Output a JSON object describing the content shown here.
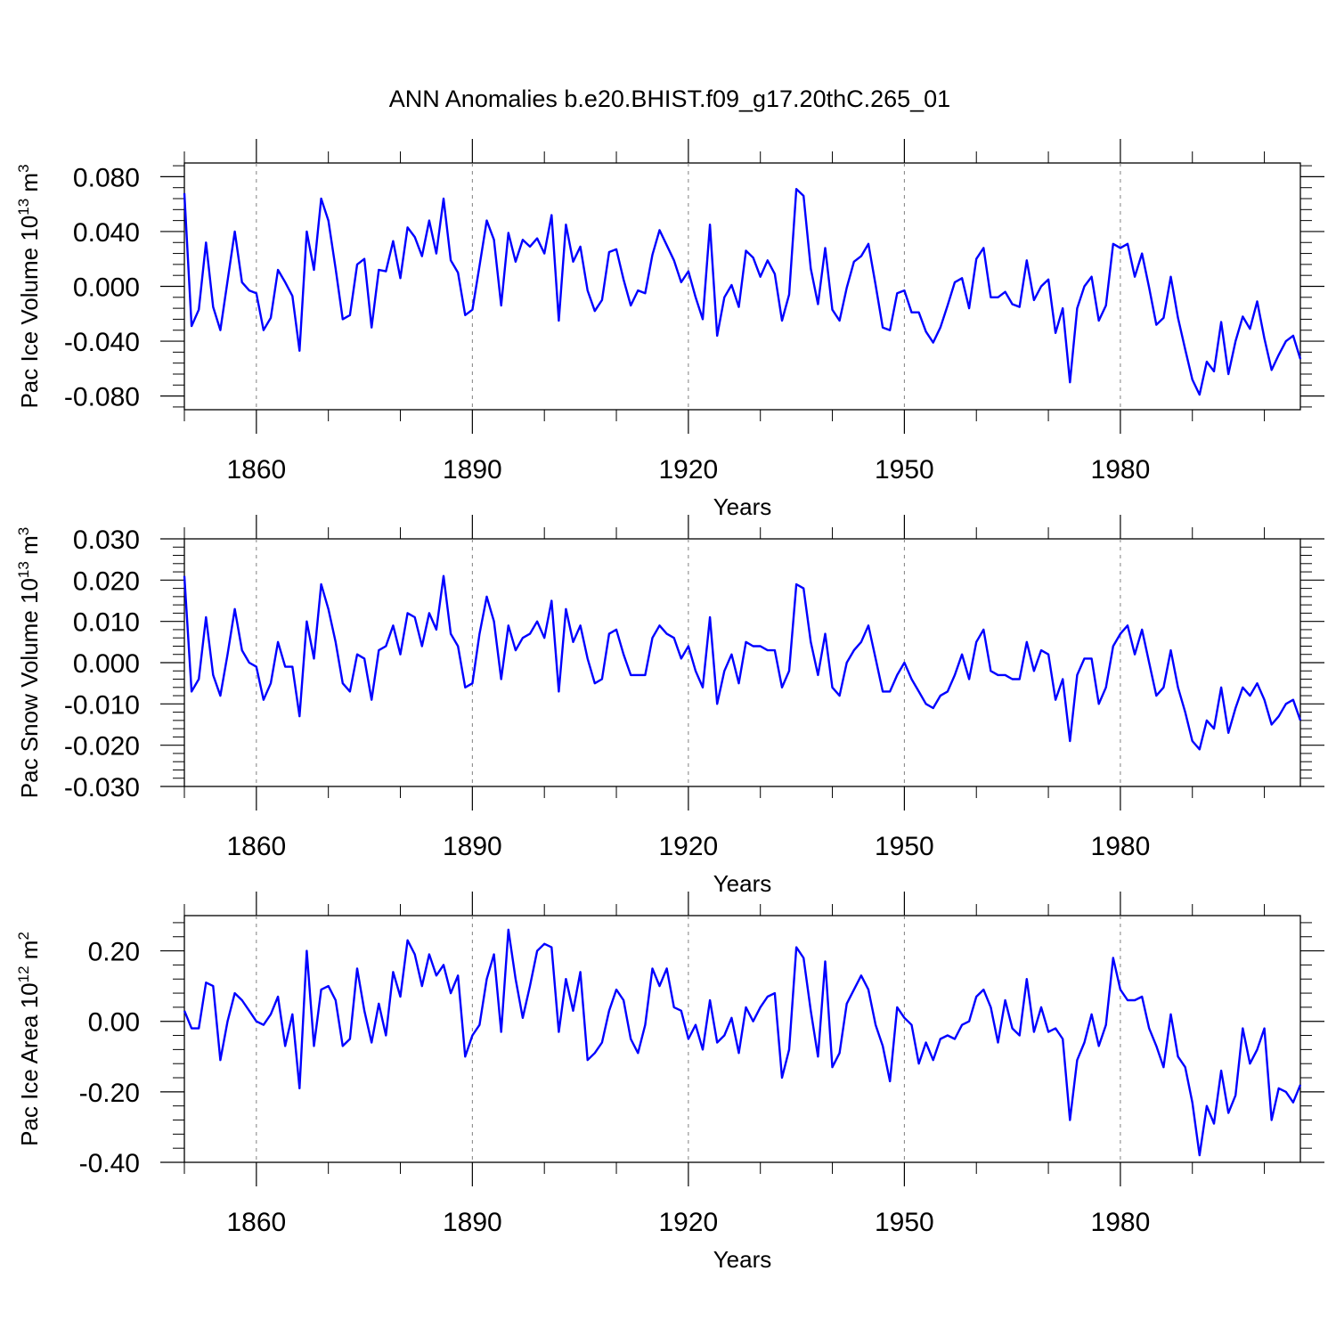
{
  "title": "ANN Anomalies b.e20.BHIST.f09_g17.20thC.265_01",
  "line_color": "#0000ff",
  "chart_data": [
    {
      "type": "line",
      "ylabel_main": "Pac Ice Volume 10",
      "ylabel_exp": "13",
      "ylabel_unit": " m",
      "ylabel_unit_exp": "3",
      "xlabel": "Years",
      "xlim": [
        1850,
        2005
      ],
      "ylim": [
        -0.09,
        0.09
      ],
      "yticks": [
        -0.08,
        -0.04,
        0.0,
        0.04,
        0.08
      ],
      "ytick_labels": [
        "-0.080",
        "-0.040",
        "0.000",
        "0.040",
        "0.080"
      ],
      "xticks": [
        1860,
        1890,
        1920,
        1950,
        1980
      ],
      "xtick_labels": [
        "1860",
        "1890",
        "1920",
        "1950",
        "1980"
      ],
      "x_start": 1850,
      "values": [
        0.068,
        -0.029,
        -0.017,
        0.032,
        -0.015,
        -0.032,
        0.004,
        0.04,
        0.003,
        -0.003,
        -0.005,
        -0.032,
        -0.023,
        0.012,
        0.003,
        -0.007,
        -0.047,
        0.04,
        0.012,
        0.064,
        0.048,
        0.013,
        -0.024,
        -0.021,
        0.016,
        0.02,
        -0.03,
        0.012,
        0.011,
        0.033,
        0.006,
        0.043,
        0.036,
        0.022,
        0.048,
        0.024,
        0.064,
        0.019,
        0.01,
        -0.021,
        -0.017,
        0.015,
        0.048,
        0.034,
        -0.014,
        0.039,
        0.018,
        0.034,
        0.029,
        0.035,
        0.024,
        0.052,
        -0.025,
        0.045,
        0.018,
        0.029,
        -0.003,
        -0.018,
        -0.01,
        0.025,
        0.027,
        0.005,
        -0.014,
        -0.003,
        -0.005,
        0.023,
        0.041,
        0.03,
        0.019,
        0.003,
        0.011,
        -0.008,
        -0.024,
        0.045,
        -0.036,
        -0.008,
        0.001,
        -0.015,
        0.026,
        0.021,
        0.007,
        0.019,
        0.009,
        -0.025,
        -0.006,
        0.071,
        0.066,
        0.013,
        -0.013,
        0.028,
        -0.017,
        -0.025,
        -0.001,
        0.018,
        0.022,
        0.031,
        0.001,
        -0.03,
        -0.032,
        -0.005,
        -0.003,
        -0.019,
        -0.019,
        -0.033,
        -0.041,
        -0.03,
        -0.014,
        0.003,
        0.006,
        -0.016,
        0.02,
        0.028,
        -0.008,
        -0.008,
        -0.004,
        -0.013,
        -0.015,
        0.019,
        -0.01,
        0.0,
        0.005,
        -0.034,
        -0.016,
        -0.07,
        -0.016,
        0.0,
        0.007,
        -0.025,
        -0.014,
        0.031,
        0.028,
        0.031,
        0.007,
        0.024,
        -0.001,
        -0.028,
        -0.023,
        0.007,
        -0.023,
        -0.046,
        -0.068,
        -0.079,
        -0.055,
        -0.062,
        -0.026,
        -0.064,
        -0.04,
        -0.022,
        -0.031,
        -0.011,
        -0.038,
        -0.061,
        -0.05,
        -0.04,
        -0.036,
        -0.053
      ]
    },
    {
      "type": "line",
      "ylabel_main": "Pac Snow Volume 10",
      "ylabel_exp": "13",
      "ylabel_unit": " m",
      "ylabel_unit_exp": "3",
      "xlabel": "Years",
      "xlim": [
        1850,
        2005
      ],
      "ylim": [
        -0.03,
        0.03
      ],
      "yticks": [
        -0.03,
        -0.02,
        -0.01,
        0.0,
        0.01,
        0.02,
        0.03
      ],
      "ytick_labels": [
        "-0.030",
        "-0.020",
        "-0.010",
        "0.000",
        "0.010",
        "0.020",
        "0.030"
      ],
      "xticks": [
        1860,
        1890,
        1920,
        1950,
        1980
      ],
      "xtick_labels": [
        "1860",
        "1890",
        "1920",
        "1950",
        "1980"
      ],
      "x_start": 1850,
      "values": [
        0.021,
        -0.007,
        -0.004,
        0.011,
        -0.003,
        -0.008,
        0.002,
        0.013,
        0.003,
        0.0,
        -0.001,
        -0.009,
        -0.005,
        0.005,
        -0.001,
        -0.001,
        -0.013,
        0.01,
        0.001,
        0.019,
        0.013,
        0.005,
        -0.005,
        -0.007,
        0.002,
        0.001,
        -0.009,
        0.003,
        0.004,
        0.009,
        0.002,
        0.012,
        0.011,
        0.004,
        0.012,
        0.008,
        0.021,
        0.007,
        0.004,
        -0.006,
        -0.005,
        0.007,
        0.016,
        0.01,
        -0.004,
        0.009,
        0.003,
        0.006,
        0.007,
        0.01,
        0.006,
        0.015,
        -0.007,
        0.013,
        0.005,
        0.009,
        0.001,
        -0.005,
        -0.004,
        0.007,
        0.008,
        0.002,
        -0.003,
        -0.003,
        -0.003,
        0.006,
        0.009,
        0.007,
        0.006,
        0.001,
        0.004,
        -0.002,
        -0.006,
        0.011,
        -0.01,
        -0.002,
        0.002,
        -0.005,
        0.005,
        0.004,
        0.004,
        0.003,
        0.003,
        -0.006,
        -0.002,
        0.019,
        0.018,
        0.005,
        -0.003,
        0.007,
        -0.006,
        -0.008,
        0.0,
        0.003,
        0.005,
        0.009,
        0.001,
        -0.007,
        -0.007,
        -0.003,
        0.0,
        -0.004,
        -0.007,
        -0.01,
        -0.011,
        -0.008,
        -0.007,
        -0.003,
        0.002,
        -0.004,
        0.005,
        0.008,
        -0.002,
        -0.003,
        -0.003,
        -0.004,
        -0.004,
        0.005,
        -0.002,
        0.003,
        0.002,
        -0.009,
        -0.004,
        -0.019,
        -0.003,
        0.001,
        0.001,
        -0.01,
        -0.006,
        0.004,
        0.007,
        0.009,
        0.002,
        0.008,
        0.0,
        -0.008,
        -0.006,
        0.003,
        -0.006,
        -0.012,
        -0.019,
        -0.021,
        -0.014,
        -0.016,
        -0.006,
        -0.017,
        -0.011,
        -0.006,
        -0.008,
        -0.005,
        -0.009,
        -0.015,
        -0.013,
        -0.01,
        -0.009,
        -0.014
      ]
    },
    {
      "type": "line",
      "ylabel_main": "Pac Ice Area 10",
      "ylabel_exp": "12",
      "ylabel_unit": " m",
      "ylabel_unit_exp": "2",
      "xlabel": "Years",
      "xlim": [
        1850,
        2005
      ],
      "ylim": [
        -0.4,
        0.3
      ],
      "yticks": [
        -0.4,
        -0.2,
        0.0,
        0.2
      ],
      "ytick_labels": [
        "-0.40",
        "-0.20",
        "0.00",
        "0.20"
      ],
      "xticks": [
        1860,
        1890,
        1920,
        1950,
        1980
      ],
      "xtick_labels": [
        "1860",
        "1890",
        "1920",
        "1950",
        "1980"
      ],
      "x_start": 1850,
      "values": [
        0.03,
        -0.02,
        -0.02,
        0.11,
        0.1,
        -0.11,
        0.0,
        0.08,
        0.06,
        0.03,
        0.0,
        -0.01,
        0.02,
        0.07,
        -0.07,
        0.02,
        -0.19,
        0.2,
        -0.07,
        0.09,
        0.1,
        0.06,
        -0.07,
        -0.05,
        0.15,
        0.03,
        -0.06,
        0.05,
        -0.04,
        0.14,
        0.07,
        0.23,
        0.19,
        0.1,
        0.19,
        0.13,
        0.16,
        0.08,
        0.13,
        -0.1,
        -0.04,
        -0.01,
        0.12,
        0.19,
        -0.03,
        0.26,
        0.12,
        0.01,
        0.1,
        0.2,
        0.22,
        0.21,
        -0.03,
        0.12,
        0.03,
        0.14,
        -0.11,
        -0.09,
        -0.06,
        0.03,
        0.09,
        0.06,
        -0.05,
        -0.09,
        -0.01,
        0.15,
        0.1,
        0.15,
        0.04,
        0.03,
        -0.05,
        -0.01,
        -0.08,
        0.06,
        -0.06,
        -0.04,
        0.01,
        -0.09,
        0.04,
        0.0,
        0.04,
        0.07,
        0.08,
        -0.16,
        -0.08,
        0.21,
        0.18,
        0.03,
        -0.1,
        0.17,
        -0.13,
        -0.09,
        0.05,
        0.09,
        0.13,
        0.09,
        -0.01,
        -0.07,
        -0.17,
        0.04,
        0.01,
        -0.01,
        -0.12,
        -0.06,
        -0.11,
        -0.05,
        -0.04,
        -0.05,
        -0.01,
        0.0,
        0.07,
        0.09,
        0.04,
        -0.06,
        0.06,
        -0.02,
        -0.04,
        0.12,
        -0.03,
        0.04,
        -0.03,
        -0.02,
        -0.05,
        -0.28,
        -0.11,
        -0.06,
        0.02,
        -0.07,
        -0.01,
        0.18,
        0.09,
        0.06,
        0.06,
        0.07,
        -0.02,
        -0.07,
        -0.13,
        0.02,
        -0.1,
        -0.13,
        -0.23,
        -0.38,
        -0.24,
        -0.29,
        -0.14,
        -0.26,
        -0.21,
        -0.02,
        -0.12,
        -0.08,
        -0.02,
        -0.28,
        -0.19,
        -0.2,
        -0.23,
        -0.18
      ]
    }
  ]
}
